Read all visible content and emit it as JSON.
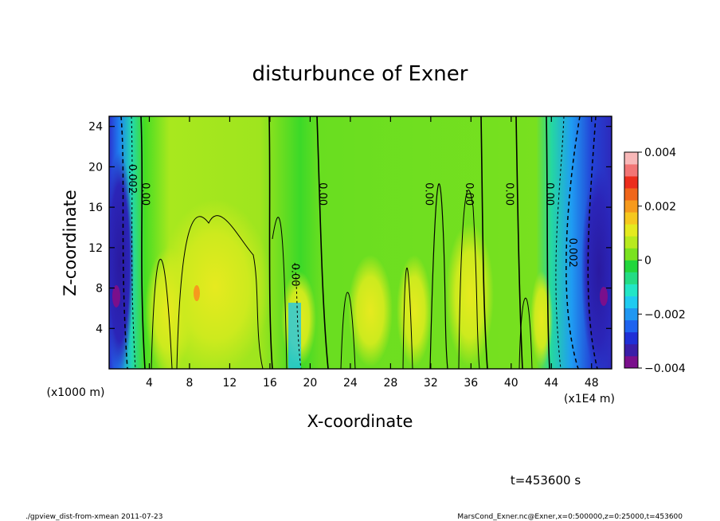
{
  "chart_data": {
    "type": "heatmap",
    "title": "disturbunce of Exner",
    "xlabel": "X-coordinate",
    "ylabel": "Z-coordinate",
    "x_unit_label": "(x1E4 m)",
    "y_unit_label": "(x1000 m)",
    "xlim": [
      0,
      50
    ],
    "ylim": [
      0,
      25
    ],
    "x_ticks": [
      4,
      8,
      12,
      16,
      20,
      24,
      28,
      32,
      36,
      40,
      44,
      48
    ],
    "x_tick_labels": [
      "4",
      "8",
      "12",
      "16",
      "20",
      "24",
      "28",
      "32",
      "36",
      "40",
      "44",
      "48"
    ],
    "y_ticks": [
      4,
      8,
      12,
      16,
      20,
      24
    ],
    "y_tick_labels": [
      "4",
      "8",
      "12",
      "16",
      "20",
      "24"
    ],
    "colorbar": {
      "range": [
        -0.004,
        0.004
      ],
      "ticks": [
        0.004,
        0.002,
        0,
        -0.002,
        -0.004
      ],
      "tick_labels": [
        "0.004",
        "0.002",
        "0",
        "−0.002",
        "−0.004"
      ],
      "colors": [
        "#7a0f8c",
        "#3a1ea8",
        "#1f2fd6",
        "#1e63ef",
        "#1f97f2",
        "#1fcbf0",
        "#22e6c6",
        "#23dc84",
        "#22d63c",
        "#7ae21f",
        "#b8ea1e",
        "#e5ea1f",
        "#f6c81e",
        "#f69a1d",
        "#f0661b",
        "#ec2d1c",
        "#f27575",
        "#f8b8b8"
      ]
    },
    "contour_labels": [
      {
        "text": "0.002",
        "x": 2.0,
        "z": 18.8
      },
      {
        "text": "0.00",
        "x": 3.3,
        "z": 17.3
      },
      {
        "text": "0.00",
        "x": 20.9,
        "z": 17.3
      },
      {
        "text": "0.00",
        "x": 18.2,
        "z": 9.3
      },
      {
        "text": "0.00",
        "x": 31.5,
        "z": 17.3
      },
      {
        "text": "0.00",
        "x": 35.5,
        "z": 17.3
      },
      {
        "text": "0.00",
        "x": 39.5,
        "z": 17.3
      },
      {
        "text": "0.00",
        "x": 43.5,
        "z": 17.3
      },
      {
        "text": "0.002",
        "x": 45.8,
        "z": 11.5
      }
    ],
    "annotations": {
      "time": "t=453600 s",
      "footer_left": "./gpview_dist-from-xmean   2011-07-23",
      "footer_right": "MarsCond_Exner.nc@Exner,x=0:500000,z=0:25000,t=453600"
    }
  }
}
